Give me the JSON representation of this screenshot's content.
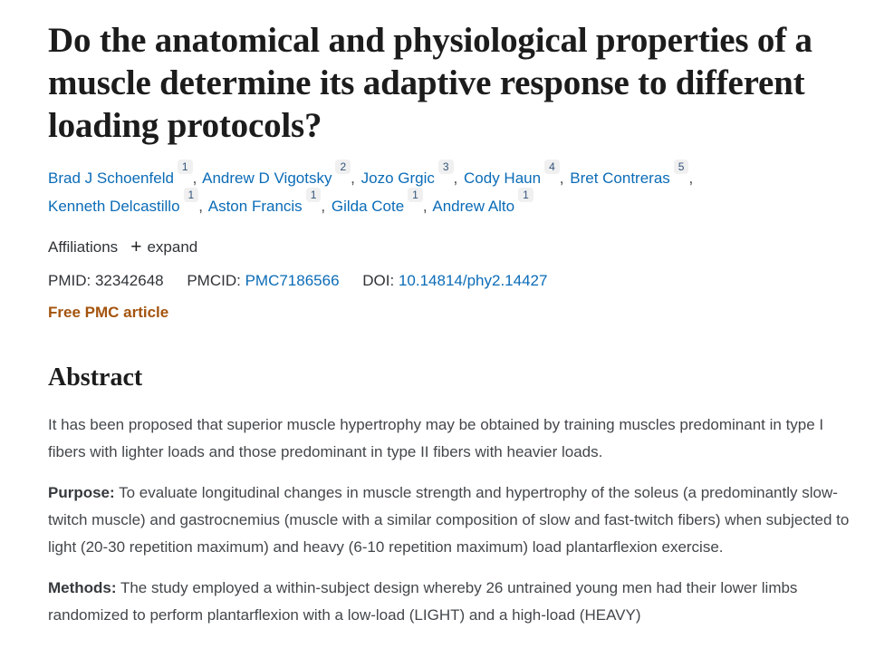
{
  "article": {
    "title": "Do the anatomical and physiological properties of a muscle determine its adaptive response to different loading protocols?",
    "authors": [
      {
        "name": "Brad J Schoenfeld",
        "sup": "1",
        "sep": ","
      },
      {
        "name": "Andrew D Vigotsky",
        "sup": "2",
        "sep": ","
      },
      {
        "name": "Jozo Grgic",
        "sup": "3",
        "sep": ","
      },
      {
        "name": "Cody Haun",
        "sup": "4",
        "sep": ","
      },
      {
        "name": "Bret Contreras",
        "sup": "5",
        "sep": ","
      },
      {
        "name": "Kenneth Delcastillo",
        "sup": "1",
        "sep": ","
      },
      {
        "name": "Aston Francis",
        "sup": "1",
        "sep": ","
      },
      {
        "name": "Gilda Cote",
        "sup": "1",
        "sep": ","
      },
      {
        "name": "Andrew Alto",
        "sup": "1",
        "sep": ""
      }
    ],
    "affiliations": {
      "label": "Affiliations",
      "expand_icon": "+",
      "expand_label": "expand"
    },
    "identifiers": {
      "pmid_label": "PMID:",
      "pmid": "32342648",
      "pmcid_label": "PMCID:",
      "pmcid": "PMC7186566",
      "doi_label": "DOI:",
      "doi": "10.14814/phy2.14427"
    },
    "free_pmc_label": "Free PMC article",
    "abstract": {
      "heading": "Abstract",
      "paragraphs": [
        {
          "label": "",
          "text": "It has been proposed that superior muscle hypertrophy may be obtained by training muscles predominant in type I fibers with lighter loads and those predominant in type II fibers with heavier loads."
        },
        {
          "label": "Purpose:",
          "text": " To evaluate longitudinal changes in muscle strength and hypertrophy of the soleus (a predominantly slow-twitch muscle) and gastrocnemius (muscle with a similar composition of slow and fast-twitch fibers) when subjected to light (20-30 repetition maximum) and heavy (6-10 repetition maximum) load plantarflexion exercise."
        },
        {
          "label": "Methods:",
          "text": " The study employed a within-subject design whereby 26 untrained young men had their lower limbs randomized to perform plantarflexion with a low-load (LIGHT) and a high-load (HEAVY)"
        }
      ]
    }
  },
  "colors": {
    "link_blue": "#0b6cb7",
    "free_pmc_orange": "#a4540e",
    "title_black": "#1c1c1c",
    "body_gray": "#43474b",
    "sup_pill_bg": "#f0f0f0",
    "sup_text": "#33547a",
    "page_bg": "#ffffff"
  }
}
